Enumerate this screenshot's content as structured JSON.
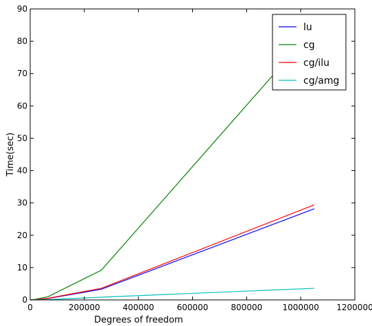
{
  "chart_data": {
    "type": "line",
    "title": "",
    "xlabel": "Degrees of freedom",
    "ylabel": "Time(sec)",
    "xlim": [
      0,
      1200000
    ],
    "ylim": [
      0,
      90
    ],
    "xticks": [
      0,
      200000,
      400000,
      600000,
      800000,
      1000000,
      1200000
    ],
    "xtick_labels": [
      "0",
      "200000",
      "400000",
      "600000",
      "800000",
      "1000000",
      "1200000"
    ],
    "yticks": [
      0,
      10,
      20,
      30,
      40,
      50,
      60,
      70,
      80,
      90
    ],
    "ytick_labels": [
      "0",
      "10",
      "20",
      "30",
      "40",
      "50",
      "60",
      "70",
      "80",
      "90"
    ],
    "grid": false,
    "legend_position": "top-right",
    "series": [
      {
        "name": "lu",
        "color": "#0000ff",
        "points": [
          [
            0,
            0
          ],
          [
            16000,
            0.05
          ],
          [
            66000,
            0.45
          ],
          [
            263000,
            3.3
          ],
          [
            1050000,
            28.2
          ]
        ]
      },
      {
        "name": "cg",
        "color": "#008000",
        "points": [
          [
            0,
            0
          ],
          [
            16000,
            0.15
          ],
          [
            66000,
            1.0
          ],
          [
            263000,
            9.2
          ],
          [
            1050000,
            84.0
          ]
        ]
      },
      {
        "name": "cg/ilu",
        "color": "#ff0000",
        "points": [
          [
            0,
            0
          ],
          [
            16000,
            0.05
          ],
          [
            66000,
            0.5
          ],
          [
            263000,
            3.6
          ],
          [
            1050000,
            29.4
          ]
        ]
      },
      {
        "name": "cg/amg",
        "color": "#00bfbf",
        "points": [
          [
            0,
            0
          ],
          [
            16000,
            0.02
          ],
          [
            66000,
            0.1
          ],
          [
            263000,
            0.85
          ],
          [
            1050000,
            3.6
          ]
        ]
      }
    ]
  }
}
